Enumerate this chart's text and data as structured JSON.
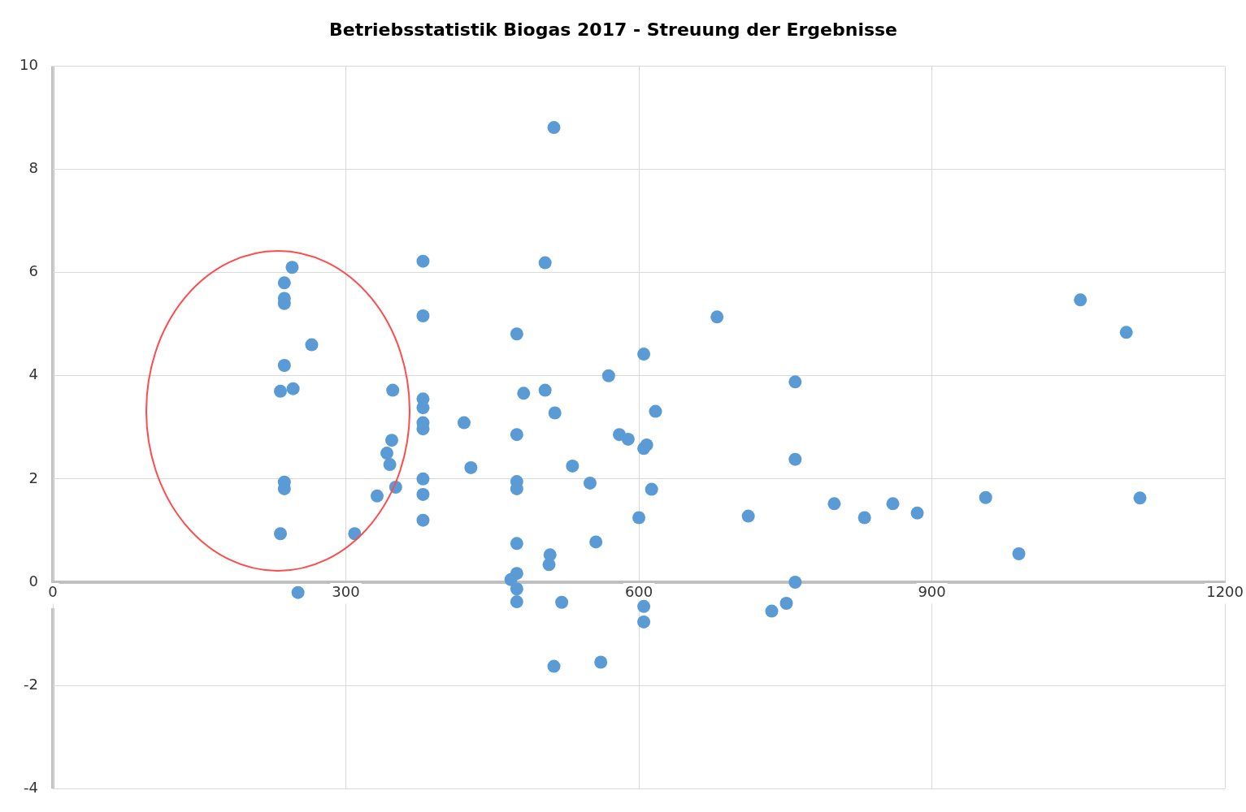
{
  "chart_data": {
    "type": "scatter",
    "title": "Betriebsstatistik Biogas 2017 - Streuung der Ergebnisse",
    "xlim": [
      0,
      1200
    ],
    "xticks": [
      0,
      300,
      600,
      900,
      1200
    ],
    "ylim": [
      -4,
      10
    ],
    "yticks": [
      -4,
      -2,
      0,
      2,
      4,
      6,
      8,
      10
    ],
    "grid": true,
    "legend": false,
    "marker": "circle",
    "series": [
      {
        "color": "#5b9bd5",
        "x": [
          245,
          237,
          237,
          237,
          265,
          237,
          233,
          246,
          237,
          237,
          233,
          251,
          309,
          332,
          351,
          342,
          345,
          347,
          348,
          379,
          379,
          379,
          379,
          379,
          379,
          379,
          379,
          379,
          421,
          428,
          475,
          475,
          475,
          475,
          475,
          475,
          469,
          475,
          475,
          482,
          504,
          504,
          513,
          514,
          509,
          508,
          521,
          513,
          532,
          550,
          556,
          561,
          569,
          580,
          589,
          605,
          608,
          605,
          617,
          613,
          600,
          605,
          605,
          680,
          712,
          736,
          751,
          760,
          760,
          760,
          800,
          831,
          860,
          885,
          955,
          989,
          1052,
          1099,
          1113
        ],
        "values": [
          6.1,
          5.8,
          5.5,
          5.4,
          4.6,
          4.2,
          3.7,
          3.75,
          1.94,
          1.81,
          0.94,
          -0.2,
          0.94,
          1.67,
          1.84,
          2.5,
          2.28,
          2.75,
          3.72,
          6.22,
          5.16,
          3.55,
          3.38,
          3.09,
          2.97,
          2.0,
          1.7,
          1.2,
          3.09,
          2.22,
          4.81,
          2.86,
          1.95,
          1.81,
          0.75,
          0.17,
          0.05,
          -0.13,
          -0.38,
          3.66,
          6.19,
          3.72,
          8.81,
          3.28,
          0.53,
          0.34,
          -0.39,
          -1.63,
          2.25,
          1.92,
          0.78,
          -1.55,
          4.0,
          2.86,
          2.77,
          4.42,
          2.66,
          2.59,
          3.31,
          1.8,
          1.25,
          -0.47,
          -0.77,
          5.14,
          1.28,
          -0.56,
          -0.41,
          3.88,
          2.38,
          0.0,
          1.52,
          1.25,
          1.52,
          1.34,
          1.64,
          0.55,
          5.47,
          4.84,
          1.63
        ]
      }
    ]
  }
}
